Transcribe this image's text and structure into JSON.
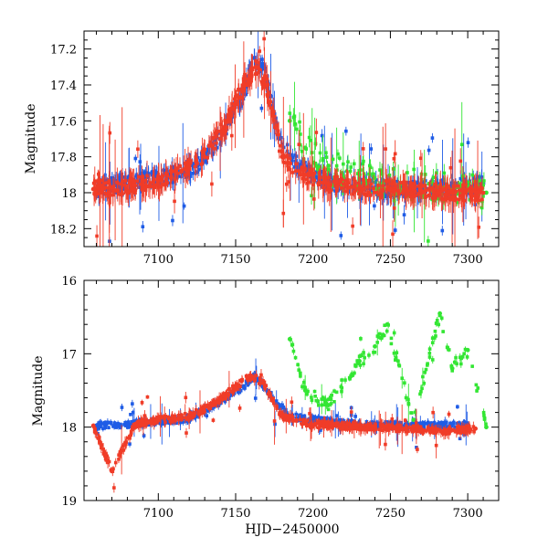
{
  "chart_data": [
    {
      "type": "scatter",
      "panel": "top",
      "title": "",
      "xlabel": "",
      "ylabel": "Magnitude",
      "xlim": [
        7052,
        7320
      ],
      "ylim": [
        18.3,
        17.1
      ],
      "y_inverted": true,
      "xticks": [
        7100,
        7150,
        7200,
        7250,
        7300
      ],
      "yticks": [
        17.2,
        17.4,
        17.6,
        17.8,
        18,
        18.2
      ],
      "ytick_labels": [
        "17.2",
        "17.4",
        "17.6",
        "17.8",
        "18",
        "18.2"
      ],
      "grid": false,
      "series": [
        {
          "name": "blue",
          "color": "#1f5ce6",
          "values": [
            [
              7060,
              17.98
            ],
            [
              7075,
              17.95
            ],
            [
              7090,
              17.93
            ],
            [
              7110,
              17.9
            ],
            [
              7125,
              17.85
            ],
            [
              7140,
              17.7
            ],
            [
              7155,
              17.45
            ],
            [
              7162,
              17.25
            ],
            [
              7168,
              17.3
            ],
            [
              7178,
              17.7
            ],
            [
              7190,
              17.85
            ],
            [
              7200,
              17.9
            ],
            [
              7215,
              17.95
            ],
            [
              7235,
              17.97
            ],
            [
              7250,
              17.98
            ],
            [
              7270,
              17.98
            ],
            [
              7290,
              17.97
            ],
            [
              7310,
              17.95
            ]
          ]
        },
        {
          "name": "green",
          "color": "#33e633",
          "values": [
            [
              7185,
              17.6
            ],
            [
              7195,
              17.75
            ],
            [
              7210,
              17.85
            ],
            [
              7230,
              17.9
            ],
            [
              7245,
              17.95
            ],
            [
              7260,
              17.96
            ],
            [
              7275,
              17.95
            ],
            [
              7285,
              17.97
            ],
            [
              7300,
              17.98
            ],
            [
              7312,
              18.0
            ]
          ]
        },
        {
          "name": "red",
          "color": "#f03c28",
          "values": [
            [
              7058,
              17.98
            ],
            [
              7070,
              17.97
            ],
            [
              7085,
              17.96
            ],
            [
              7100,
              17.93
            ],
            [
              7115,
              17.88
            ],
            [
              7130,
              17.8
            ],
            [
              7145,
              17.6
            ],
            [
              7155,
              17.4
            ],
            [
              7163,
              17.3
            ],
            [
              7170,
              17.4
            ],
            [
              7180,
              17.8
            ],
            [
              7195,
              17.9
            ],
            [
              7210,
              17.95
            ],
            [
              7230,
              17.97
            ],
            [
              7250,
              17.98
            ],
            [
              7270,
              17.99
            ],
            [
              7290,
              18.0
            ],
            [
              7310,
              18.0
            ]
          ]
        }
      ]
    },
    {
      "type": "scatter",
      "panel": "bottom",
      "title": "",
      "xlabel": "HJD−2450000",
      "ylabel": "Magnitude",
      "xlim": [
        7052,
        7320
      ],
      "ylim": [
        19,
        16
      ],
      "y_inverted": true,
      "xticks": [
        7100,
        7150,
        7200,
        7250,
        7300
      ],
      "yticks": [
        16,
        17,
        18,
        19
      ],
      "ytick_labels": [
        "16",
        "17",
        "18",
        "19"
      ],
      "grid": false,
      "series": [
        {
          "name": "blue",
          "color": "#1f5ce6",
          "values": [
            [
              7060,
              17.98
            ],
            [
              7080,
              17.96
            ],
            [
              7100,
              17.93
            ],
            [
              7120,
              17.88
            ],
            [
              7140,
              17.65
            ],
            [
              7155,
              17.45
            ],
            [
              7163,
              17.3
            ],
            [
              7172,
              17.55
            ],
            [
              7185,
              17.85
            ],
            [
              7200,
              17.9
            ],
            [
              7220,
              17.95
            ],
            [
              7240,
              17.97
            ],
            [
              7260,
              17.98
            ],
            [
              7280,
              17.98
            ],
            [
              7300,
              17.97
            ]
          ]
        },
        {
          "name": "green",
          "color": "#33e633",
          "values": [
            [
              7185,
              16.8
            ],
            [
              7195,
              17.5
            ],
            [
              7210,
              17.7
            ],
            [
              7230,
              17.1
            ],
            [
              7240,
              16.9
            ],
            [
              7248,
              16.6
            ],
            [
              7265,
              17.9
            ],
            [
              7282,
              16.45
            ],
            [
              7290,
              17.2
            ],
            [
              7300,
              16.95
            ],
            [
              7312,
              18.0
            ]
          ]
        },
        {
          "name": "red",
          "color": "#f03c28",
          "values": [
            [
              7058,
              17.98
            ],
            [
              7070,
              18.6
            ],
            [
              7085,
              17.96
            ],
            [
              7100,
              17.9
            ],
            [
              7120,
              17.85
            ],
            [
              7135,
              17.7
            ],
            [
              7150,
              17.45
            ],
            [
              7160,
              17.3
            ],
            [
              7168,
              17.4
            ],
            [
              7180,
              17.85
            ],
            [
              7195,
              17.95
            ],
            [
              7215,
              17.98
            ],
            [
              7240,
              18.0
            ],
            [
              7260,
              18.02
            ],
            [
              7285,
              18.05
            ],
            [
              7305,
              18.02
            ]
          ]
        }
      ]
    }
  ]
}
